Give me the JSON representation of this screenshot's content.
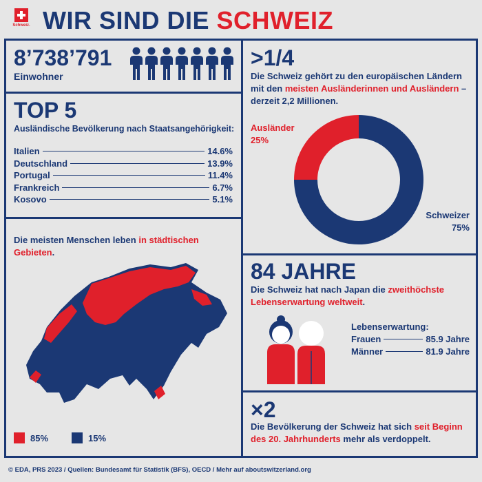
{
  "header": {
    "logo_text": "Schweiz.",
    "title_part1": "WIR SIND DIE ",
    "title_part2": "SCHWEIZ"
  },
  "population": {
    "value": "8’738’791",
    "label": "Einwohner",
    "figure_count": 7
  },
  "top5": {
    "title": "TOP 5",
    "subtitle": "Ausländische Bevölkerung nach Staatsangehörigkeit:",
    "rows": [
      {
        "country": "Italien",
        "value": "14.6%"
      },
      {
        "country": "Deutschland",
        "value": "13.9%"
      },
      {
        "country": "Portugal",
        "value": "11.4%"
      },
      {
        "country": "Frankreich",
        "value": "6.7%"
      },
      {
        "country": "Kosovo",
        "value": "5.1%"
      }
    ]
  },
  "foreigners": {
    "title": ">1/4",
    "text_part1": "Die Schweiz gehört zu den europäischen Ländern mit den ",
    "text_red": "meisten Ausländerinnen und Ausländern",
    "text_part2": " – derzeit 2,2 Millionen.",
    "label_foreign": "Ausländer",
    "label_foreign_pct": "25%",
    "label_swiss": "Schweizer",
    "label_swiss_pct": "75%",
    "foreign_share": 0.25,
    "colors": {
      "foreign": "#e0202b",
      "swiss": "#1b3874"
    }
  },
  "urban": {
    "text_part1": "Die meisten Menschen leben ",
    "text_red": "in städtischen Gebieten",
    "text_part2": ".",
    "legend": [
      {
        "label": "85%",
        "color": "#e0202b"
      },
      {
        "label": "15%",
        "color": "#1b3874"
      }
    ]
  },
  "life": {
    "title": "84 JAHRE",
    "text_part1": "Die Schweiz hat nach Japan die ",
    "text_red": "zweithöchste Lebenserwartung weltweit",
    "text_part2": ".",
    "heading": "Lebenserwartung:",
    "rows": [
      {
        "label": "Frauen",
        "value": "85.9 Jahre"
      },
      {
        "label": "Männer",
        "value": "81.9 Jahre"
      }
    ]
  },
  "double": {
    "title": "×2",
    "text_part1": "Die Bevölkerung der Schweiz hat sich ",
    "text_red": "seit Beginn des 20. Jahrhunderts",
    "text_part2": " mehr als verdoppelt."
  },
  "footer": {
    "text": "© EDA, PRS 2023 / Quellen: Bundesamt für Statistik (BFS), OECD / Mehr auf aboutswitzerland.org"
  }
}
